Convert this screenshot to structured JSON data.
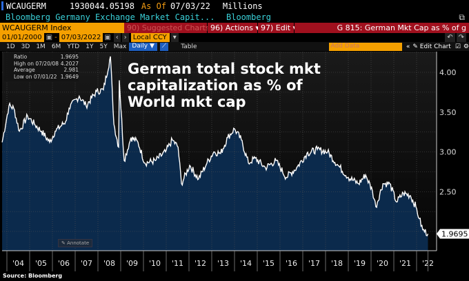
{
  "header": {
    "ticker": "WCAUGERM",
    "value": "1930044.05198",
    "as_of_label": "As Of",
    "as_of_date": "07/03/22",
    "units": "Millions",
    "description": "Bloomberg Germany Exchange Market Capit...",
    "source": "Bloomberg"
  },
  "toolbar": {
    "security": "WCAUGERM Index",
    "suggested": "90) Suggested Charts",
    "actions": "96) Actions ▾",
    "edit": "97) Edit ▾",
    "chart_name": "G 815: German Mkt Cap as % of g"
  },
  "range": {
    "start": "01/01/2000",
    "end": "07/03/2022",
    "currency": "Local CCY"
  },
  "periods": [
    "1D",
    "3D",
    "1M",
    "6M",
    "YTD",
    "1Y",
    "5Y",
    "Max"
  ],
  "frequency": "Daily ▼",
  "table_label": "Table",
  "add_data_placeholder": "Add Data",
  "edit_chart": "✎ Edit Chart",
  "legend": [
    {
      "label": "Ratio",
      "value": "1.9695"
    },
    {
      "label": "High on 07/20/08",
      "value": "4.2027"
    },
    {
      "label": "Average",
      "value": "2.981"
    },
    {
      "label": "Low on 07/01/22",
      "value": "1.9649"
    }
  ],
  "annotation_title": "German total stock mkt capitalization as % of World mkt cap",
  "annotate_button": "✎ Annotate",
  "source_note": "Source: Bloomberg",
  "colors": {
    "area": "#0b2a4c",
    "line": "#ffffff",
    "accent": "#f5a000",
    "toolbar_red": "#a0101e"
  },
  "chart_data": {
    "type": "area",
    "y_axis_side": "right",
    "ylim": [
      1.9,
      4.25
    ],
    "y_ticks": [
      "4.00",
      "3.50",
      "3.00",
      "2.50"
    ],
    "last_value_label": "1.9695",
    "x_ticks": [
      "'04",
      "'05",
      "'06",
      "'07",
      "'08",
      "'09",
      "'10",
      "'11",
      "'12",
      "'13",
      "'14",
      "'15",
      "'16",
      "'17",
      "'18",
      "'19",
      "'20",
      "'21",
      "'22"
    ],
    "grid": true,
    "series": [
      {
        "name": "Ratio",
        "x": [
          2003.79,
          2004.09,
          2004.3,
          2004.55,
          2004.91,
          2005.21,
          2005.52,
          2005.88,
          2006.12,
          2006.58,
          2006.73,
          2007.18,
          2007.48,
          2007.94,
          2008.24,
          2008.55,
          2008.7,
          2008.91,
          2008.94,
          2009.15,
          2009.45,
          2009.76,
          2010.06,
          2010.52,
          2010.97,
          2011.27,
          2011.52,
          2011.67,
          2012.03,
          2012.42,
          2012.79,
          2013.09,
          2013.39,
          2013.7,
          2014.0,
          2014.3,
          2014.61,
          2014.91,
          2015.36,
          2015.82,
          2016.27,
          2016.73,
          2017.18,
          2017.64,
          2018.09,
          2018.55,
          2019.0,
          2019.45,
          2019.76,
          2020.06,
          2020.21,
          2020.52,
          2020.82,
          2021.12,
          2021.42,
          2021.73,
          2021.97,
          2022.12,
          2022.27,
          2022.5
        ],
        "y": [
          3.12,
          3.58,
          3.55,
          3.26,
          3.45,
          3.35,
          3.26,
          3.12,
          3.26,
          3.38,
          3.55,
          3.7,
          3.58,
          3.76,
          3.78,
          4.2,
          3.35,
          3.06,
          3.9,
          2.89,
          3.18,
          3.12,
          2.86,
          2.89,
          3.0,
          3.15,
          3.06,
          2.6,
          2.83,
          2.66,
          2.86,
          3.0,
          2.98,
          3.18,
          3.29,
          3.15,
          2.86,
          2.92,
          2.8,
          2.89,
          2.68,
          2.8,
          2.98,
          3.03,
          3.0,
          2.83,
          2.68,
          2.6,
          2.71,
          2.51,
          2.31,
          2.6,
          2.6,
          2.37,
          2.48,
          2.45,
          2.31,
          2.16,
          2.02,
          1.97
        ]
      }
    ]
  }
}
